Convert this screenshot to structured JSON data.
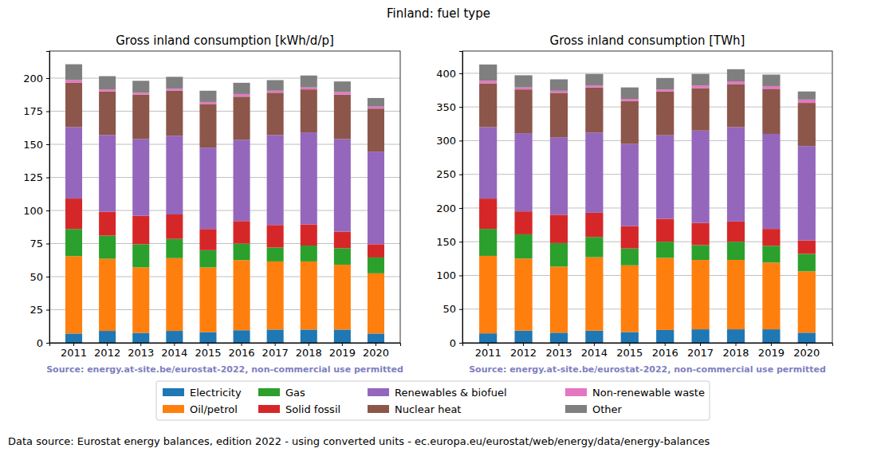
{
  "title": "Finland: fuel type",
  "footer": "Data source: Eurostat energy balances, edition 2022 - using converted units - ec.europa.eu/eurostat/web/energy/data/energy-balances",
  "chart_data": [
    {
      "type": "bar",
      "stacked": true,
      "grid": true,
      "legend": "bottom",
      "title": "Gross inland consumption [kWh/d/p]",
      "source": "Source: energy.at-site.be/eurostat-2022, non-commercial use permitted",
      "categories": [
        "2011",
        "2012",
        "2013",
        "2014",
        "2015",
        "2016",
        "2017",
        "2018",
        "2019",
        "2020"
      ],
      "ylim": [
        0,
        220.5
      ],
      "yticks": [
        0,
        25,
        50,
        75,
        100,
        125,
        150,
        175,
        200
      ],
      "series": [
        {
          "name": "Electricity",
          "color": "#1f77b4",
          "values": [
            7,
            9,
            7.5,
            9,
            8,
            9.5,
            10,
            10,
            10,
            7
          ]
        },
        {
          "name": "Oil/petrol",
          "color": "#ff7f0e",
          "values": [
            58.5,
            54.5,
            49.5,
            55,
            49,
            53,
            51.5,
            51.5,
            49,
            45.5
          ]
        },
        {
          "name": "Gas",
          "color": "#2ca02c",
          "values": [
            20.5,
            17.5,
            17.5,
            14.5,
            13,
            12.5,
            10.5,
            12,
            12.5,
            12
          ]
        },
        {
          "name": "Solid fossil",
          "color": "#d62728",
          "values": [
            23,
            18,
            21.5,
            18.5,
            16,
            17,
            17,
            16,
            12.5,
            10
          ]
        },
        {
          "name": "Renewables & biofuel",
          "color": "#9467bd",
          "values": [
            54,
            58,
            58,
            59.5,
            61.5,
            61.5,
            68,
            69.5,
            70,
            70
          ]
        },
        {
          "name": "Nuclear heat",
          "color": "#8c564b",
          "values": [
            33.5,
            33,
            33.5,
            34,
            33,
            32.5,
            32,
            32.5,
            33.5,
            32.5
          ]
        },
        {
          "name": "Non-renewable waste",
          "color": "#e377c2",
          "values": [
            2,
            1.5,
            1.5,
            1.5,
            1.5,
            2,
            1.5,
            1.5,
            2,
            1.5
          ]
        },
        {
          "name": "Other",
          "color": "#7f7f7f",
          "values": [
            12,
            10,
            9,
            9,
            8.5,
            8.5,
            8,
            9,
            8,
            6.5
          ]
        }
      ]
    },
    {
      "type": "bar",
      "stacked": true,
      "grid": true,
      "legend": "bottom",
      "title": "Gross inland consumption [TWh]",
      "source": "Source: energy.at-site.be/eurostat-2022, non-commercial use permitted",
      "categories": [
        "2011",
        "2012",
        "2013",
        "2014",
        "2015",
        "2016",
        "2017",
        "2018",
        "2019",
        "2020"
      ],
      "ylim": [
        0,
        433
      ],
      "yticks": [
        0,
        50,
        100,
        150,
        200,
        250,
        300,
        350,
        400
      ],
      "series": [
        {
          "name": "Electricity",
          "color": "#1f77b4",
          "values": [
            14,
            18,
            15,
            18,
            16,
            19,
            20,
            20,
            20,
            15
          ]
        },
        {
          "name": "Oil/petrol",
          "color": "#ff7f0e",
          "values": [
            115,
            107,
            98,
            109,
            99,
            107,
            103,
            103,
            99,
            91
          ]
        },
        {
          "name": "Gas",
          "color": "#2ca02c",
          "values": [
            40,
            36,
            35,
            30,
            25,
            24,
            22,
            27,
            25,
            26
          ]
        },
        {
          "name": "Solid fossil",
          "color": "#d62728",
          "values": [
            45,
            34,
            42,
            36,
            33,
            34,
            33,
            30,
            25,
            20
          ]
        },
        {
          "name": "Renewables & biofuel",
          "color": "#9467bd",
          "values": [
            106,
            116,
            115,
            119,
            122,
            124,
            137,
            140,
            141,
            140
          ]
        },
        {
          "name": "Nuclear heat",
          "color": "#8c564b",
          "values": [
            65,
            65,
            66,
            67,
            64,
            65,
            63,
            64,
            67,
            64
          ]
        },
        {
          "name": "Non-renewable waste",
          "color": "#e377c2",
          "values": [
            4,
            3,
            3,
            3,
            3,
            3,
            4,
            4,
            4,
            5
          ]
        },
        {
          "name": "Other",
          "color": "#7f7f7f",
          "values": [
            24,
            18,
            17,
            17,
            17,
            17,
            17,
            18,
            17,
            12
          ]
        }
      ]
    }
  ]
}
